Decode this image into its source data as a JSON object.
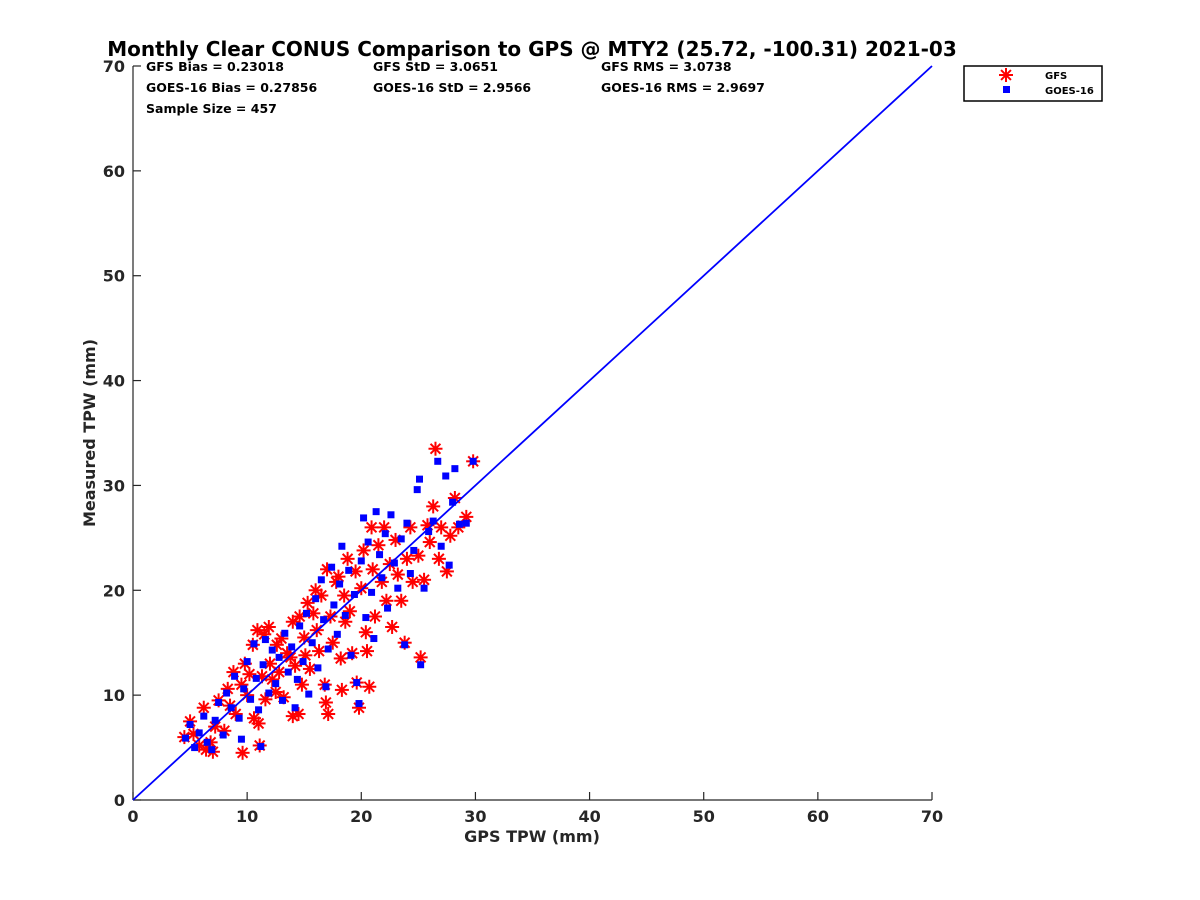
{
  "chart_data": {
    "type": "scatter",
    "title": "Monthly Clear CONUS Comparison to GPS @ MTY2 (25.72, -100.31) 2021-03",
    "xlabel": "GPS TPW (mm)",
    "ylabel": "Measured TPW (mm)",
    "xlim": [
      0,
      70
    ],
    "ylim": [
      0,
      70
    ],
    "xticks": [
      0,
      10,
      20,
      30,
      40,
      50,
      60,
      70
    ],
    "yticks": [
      0,
      10,
      20,
      30,
      40,
      50,
      60,
      70
    ],
    "grid": false,
    "legend_position": "top-right",
    "stats": {
      "gfs_bias": "GFS Bias = 0.23018",
      "gfs_std": "GFS StD = 3.0651",
      "gfs_rms": "GFS RMS = 3.0738",
      "goes_bias": "GOES-16 Bias = 0.27856",
      "goes_std": "GOES-16 StD = 2.9566",
      "goes_rms": "GOES-16 RMS = 2.9697",
      "sample_size": "Sample Size = 457"
    },
    "reference_line": {
      "x": [
        0,
        70
      ],
      "y": [
        0,
        70
      ],
      "color": "#0000ff"
    },
    "series": [
      {
        "name": "GFS",
        "marker": "asterisk",
        "color": "#ff0000",
        "points": [
          [
            4.5,
            6.0
          ],
          [
            5.0,
            7.5
          ],
          [
            5.3,
            6.3
          ],
          [
            5.8,
            5.2
          ],
          [
            6.2,
            8.8
          ],
          [
            6.4,
            4.8
          ],
          [
            6.8,
            5.5
          ],
          [
            7.0,
            4.6
          ],
          [
            7.2,
            7.0
          ],
          [
            7.5,
            9.5
          ],
          [
            8.0,
            6.6
          ],
          [
            8.3,
            10.6
          ],
          [
            8.5,
            9.0
          ],
          [
            8.8,
            12.2
          ],
          [
            9.0,
            8.2
          ],
          [
            9.5,
            11.0
          ],
          [
            9.6,
            4.5
          ],
          [
            9.8,
            13.0
          ],
          [
            10.0,
            10.0
          ],
          [
            10.2,
            12.0
          ],
          [
            10.5,
            14.8
          ],
          [
            10.6,
            7.8
          ],
          [
            10.9,
            16.2
          ],
          [
            11.0,
            7.3
          ],
          [
            11.1,
            5.2
          ],
          [
            11.3,
            11.8
          ],
          [
            11.5,
            15.8
          ],
          [
            11.6,
            9.6
          ],
          [
            11.9,
            16.5
          ],
          [
            12.0,
            13.0
          ],
          [
            12.2,
            11.5
          ],
          [
            12.5,
            10.3
          ],
          [
            12.6,
            14.8
          ],
          [
            12.8,
            12.2
          ],
          [
            13.0,
            15.4
          ],
          [
            13.2,
            9.8
          ],
          [
            13.5,
            14.0
          ],
          [
            13.8,
            13.6
          ],
          [
            14.0,
            17.0
          ],
          [
            14.0,
            8.0
          ],
          [
            14.2,
            12.8
          ],
          [
            14.5,
            8.2
          ],
          [
            14.6,
            17.5
          ],
          [
            14.8,
            11.0
          ],
          [
            15.0,
            15.5
          ],
          [
            15.1,
            13.8
          ],
          [
            15.3,
            18.8
          ],
          [
            15.5,
            12.5
          ],
          [
            15.8,
            17.8
          ],
          [
            16.0,
            20.0
          ],
          [
            16.1,
            16.2
          ],
          [
            16.3,
            14.2
          ],
          [
            16.5,
            19.5
          ],
          [
            16.8,
            11.0
          ],
          [
            16.9,
            9.3
          ],
          [
            17.0,
            22.0
          ],
          [
            17.1,
            8.2
          ],
          [
            17.3,
            17.5
          ],
          [
            17.5,
            15.0
          ],
          [
            17.8,
            20.8
          ],
          [
            18.0,
            21.3
          ],
          [
            18.2,
            13.5
          ],
          [
            18.3,
            10.5
          ],
          [
            18.5,
            19.5
          ],
          [
            18.6,
            17.0
          ],
          [
            18.8,
            23.0
          ],
          [
            19.0,
            18.0
          ],
          [
            19.2,
            14.0
          ],
          [
            19.5,
            21.8
          ],
          [
            19.6,
            11.2
          ],
          [
            19.8,
            8.8
          ],
          [
            20.0,
            20.2
          ],
          [
            20.2,
            23.8
          ],
          [
            20.4,
            16.0
          ],
          [
            20.5,
            14.2
          ],
          [
            20.7,
            10.8
          ],
          [
            20.9,
            26.0
          ],
          [
            21.0,
            22.0
          ],
          [
            21.2,
            17.5
          ],
          [
            21.5,
            24.3
          ],
          [
            21.8,
            20.8
          ],
          [
            22.0,
            26.0
          ],
          [
            22.2,
            19.0
          ],
          [
            22.5,
            22.5
          ],
          [
            22.7,
            16.5
          ],
          [
            23.0,
            24.8
          ],
          [
            23.2,
            21.5
          ],
          [
            23.5,
            19.0
          ],
          [
            23.8,
            15.0
          ],
          [
            24.0,
            23.0
          ],
          [
            24.3,
            26.0
          ],
          [
            24.5,
            20.8
          ],
          [
            25.0,
            23.3
          ],
          [
            25.2,
            13.6
          ],
          [
            25.5,
            21.0
          ],
          [
            25.8,
            26.2
          ],
          [
            26.0,
            24.6
          ],
          [
            26.3,
            28.0
          ],
          [
            26.5,
            33.5
          ],
          [
            26.8,
            23.0
          ],
          [
            27.0,
            26.0
          ],
          [
            27.5,
            21.8
          ],
          [
            27.8,
            25.2
          ],
          [
            28.2,
            28.8
          ],
          [
            28.5,
            26.0
          ],
          [
            29.2,
            27.0
          ],
          [
            29.8,
            32.3
          ]
        ]
      },
      {
        "name": "GOES-16",
        "marker": "square",
        "color": "#0000ff",
        "points": [
          [
            4.6,
            5.9
          ],
          [
            5.0,
            7.2
          ],
          [
            5.4,
            5.0
          ],
          [
            5.8,
            6.4
          ],
          [
            6.2,
            8.0
          ],
          [
            6.5,
            5.5
          ],
          [
            6.9,
            4.8
          ],
          [
            7.2,
            7.6
          ],
          [
            7.5,
            9.3
          ],
          [
            7.9,
            6.2
          ],
          [
            8.2,
            10.2
          ],
          [
            8.6,
            8.8
          ],
          [
            8.9,
            11.8
          ],
          [
            9.3,
            7.8
          ],
          [
            9.5,
            5.8
          ],
          [
            9.7,
            10.6
          ],
          [
            10.0,
            13.2
          ],
          [
            10.3,
            9.6
          ],
          [
            10.6,
            14.9
          ],
          [
            10.8,
            11.6
          ],
          [
            11.0,
            8.6
          ],
          [
            11.2,
            5.1
          ],
          [
            11.4,
            12.9
          ],
          [
            11.6,
            15.3
          ],
          [
            11.9,
            10.2
          ],
          [
            12.2,
            14.3
          ],
          [
            12.5,
            11.1
          ],
          [
            12.8,
            13.6
          ],
          [
            13.1,
            9.5
          ],
          [
            13.3,
            15.9
          ],
          [
            13.6,
            12.2
          ],
          [
            13.9,
            14.6
          ],
          [
            14.2,
            8.8
          ],
          [
            14.4,
            11.5
          ],
          [
            14.6,
            16.6
          ],
          [
            14.9,
            13.2
          ],
          [
            15.2,
            17.8
          ],
          [
            15.4,
            10.1
          ],
          [
            15.7,
            15.0
          ],
          [
            16.0,
            19.2
          ],
          [
            16.2,
            12.6
          ],
          [
            16.5,
            21.0
          ],
          [
            16.7,
            17.2
          ],
          [
            16.9,
            10.8
          ],
          [
            17.1,
            14.4
          ],
          [
            17.4,
            22.2
          ],
          [
            17.6,
            18.6
          ],
          [
            17.9,
            15.8
          ],
          [
            18.1,
            20.6
          ],
          [
            18.3,
            24.2
          ],
          [
            18.6,
            17.6
          ],
          [
            18.9,
            21.9
          ],
          [
            19.1,
            13.8
          ],
          [
            19.4,
            19.6
          ],
          [
            19.6,
            11.2
          ],
          [
            19.8,
            9.2
          ],
          [
            20.0,
            22.8
          ],
          [
            20.2,
            26.9
          ],
          [
            20.4,
            17.4
          ],
          [
            20.6,
            24.6
          ],
          [
            20.9,
            19.8
          ],
          [
            21.1,
            15.4
          ],
          [
            21.3,
            27.5
          ],
          [
            21.6,
            23.4
          ],
          [
            21.8,
            21.2
          ],
          [
            22.1,
            25.4
          ],
          [
            22.3,
            18.3
          ],
          [
            22.6,
            27.2
          ],
          [
            22.9,
            22.6
          ],
          [
            23.2,
            20.2
          ],
          [
            23.5,
            24.9
          ],
          [
            23.8,
            14.8
          ],
          [
            24.0,
            26.4
          ],
          [
            24.3,
            21.6
          ],
          [
            24.6,
            23.8
          ],
          [
            24.9,
            29.6
          ],
          [
            25.1,
            30.6
          ],
          [
            25.2,
            12.9
          ],
          [
            25.5,
            20.2
          ],
          [
            25.9,
            25.6
          ],
          [
            26.3,
            26.6
          ],
          [
            26.7,
            32.3
          ],
          [
            27.0,
            24.2
          ],
          [
            27.4,
            30.9
          ],
          [
            27.7,
            22.4
          ],
          [
            28.0,
            28.4
          ],
          [
            28.2,
            31.6
          ],
          [
            28.6,
            26.3
          ],
          [
            29.2,
            26.4
          ],
          [
            29.8,
            32.3
          ]
        ]
      }
    ]
  }
}
